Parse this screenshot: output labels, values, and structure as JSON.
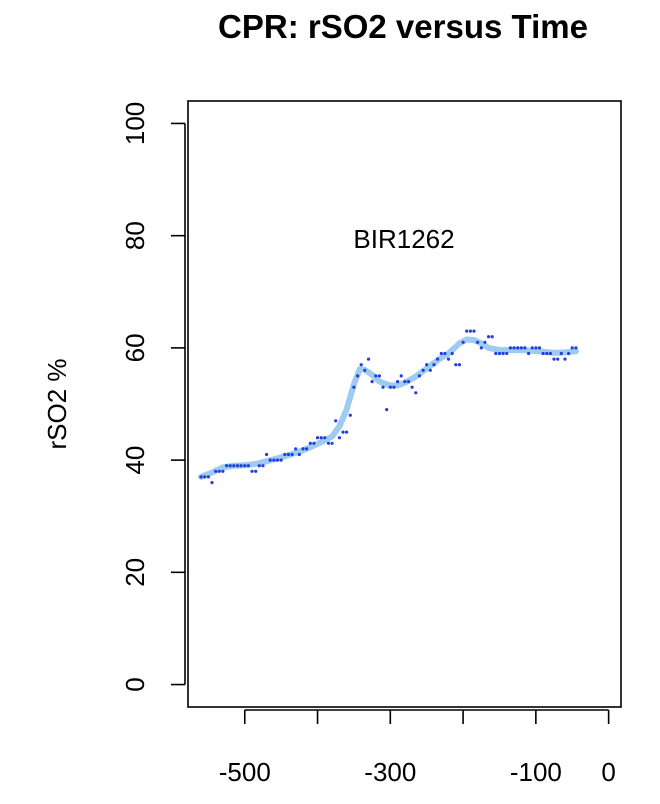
{
  "chart_data": {
    "type": "scatter",
    "title": "CPR: rSO2 versus Time",
    "xlabel": "",
    "ylabel": "rSO2 %",
    "annotation": "BIR1262",
    "xlim": [
      -578,
      17
    ],
    "ylim": [
      -4,
      104
    ],
    "x_ticks": [
      -500,
      -400,
      -300,
      -200,
      -100,
      0
    ],
    "x_tick_labels": [
      "-500",
      "-300",
      "-100",
      "0"
    ],
    "y_ticks": [
      0,
      20,
      40,
      60,
      80,
      100
    ],
    "y_tick_labels": [
      "0",
      "20",
      "40",
      "60",
      "80",
      "100"
    ],
    "grid": false,
    "colors": {
      "points": "#1f3fe0",
      "smooth": "#9ecbef",
      "axis": "#000000"
    },
    "series": [
      {
        "type": "points",
        "x": [
          -560,
          -555,
          -550,
          -545,
          -540,
          -535,
          -530,
          -525,
          -520,
          -515,
          -510,
          -505,
          -500,
          -495,
          -490,
          -485,
          -480,
          -475,
          -470,
          -465,
          -460,
          -455,
          -450,
          -445,
          -440,
          -435,
          -430,
          -425,
          -420,
          -415,
          -410,
          -405,
          -400,
          -395,
          -390,
          -385,
          -380,
          -375,
          -370,
          -365,
          -360,
          -355,
          -350,
          -345,
          -340,
          -335,
          -330,
          -325,
          -320,
          -315,
          -310,
          -305,
          -300,
          -295,
          -290,
          -285,
          -280,
          -275,
          -270,
          -265,
          -260,
          -255,
          -250,
          -245,
          -240,
          -235,
          -230,
          -225,
          -220,
          -215,
          -210,
          -205,
          -200,
          -195,
          -190,
          -185,
          -180,
          -175,
          -170,
          -165,
          -160,
          -155,
          -150,
          -145,
          -140,
          -135,
          -130,
          -125,
          -120,
          -115,
          -110,
          -105,
          -100,
          -95,
          -90,
          -85,
          -80,
          -75,
          -70,
          -65,
          -60,
          -55,
          -50,
          -45
        ],
        "y": [
          37,
          37,
          37,
          36,
          38,
          38,
          38,
          39,
          39,
          39,
          39,
          39,
          39,
          39,
          38,
          38,
          39,
          39,
          41,
          40,
          40,
          40,
          40,
          41,
          41,
          41,
          42,
          41,
          42,
          42,
          43,
          43,
          44,
          44,
          44,
          43,
          43,
          47,
          44,
          45,
          45,
          48,
          53,
          55,
          57,
          56,
          58,
          54,
          55,
          55,
          53,
          49,
          53,
          53,
          54,
          55,
          54,
          54,
          53,
          52,
          55,
          56,
          57,
          56,
          57,
          58,
          59,
          59,
          58,
          59,
          57,
          57,
          61,
          63,
          63,
          63,
          61,
          60,
          61,
          62,
          62,
          59,
          59,
          59,
          59,
          60,
          60,
          60,
          60,
          60,
          59,
          60,
          60,
          60,
          59,
          59,
          59,
          58,
          58,
          59,
          58,
          59,
          60,
          60
        ]
      },
      {
        "type": "smooth",
        "x": [
          -560,
          -545,
          -530,
          -515,
          -500,
          -485,
          -470,
          -455,
          -440,
          -425,
          -410,
          -395,
          -380,
          -370,
          -360,
          -350,
          -342,
          -335,
          -325,
          -315,
          -300,
          -290,
          -280,
          -265,
          -250,
          -235,
          -220,
          -205,
          -195,
          -185,
          -175,
          -165,
          -150,
          -135,
          -120,
          -105,
          -90,
          -75,
          -60,
          -45
        ],
        "y": [
          37,
          37.8,
          38.7,
          39,
          39.1,
          39.3,
          39.8,
          40.3,
          40.9,
          41.5,
          42.3,
          43.2,
          44.2,
          46,
          49,
          53.5,
          56.2,
          56.1,
          55.2,
          54,
          53.3,
          53.3,
          53.8,
          54.9,
          56.3,
          57.8,
          59,
          60.8,
          61.5,
          61.4,
          60.8,
          60,
          59.6,
          59.6,
          59.6,
          59.5,
          59.3,
          59.1,
          59.2,
          59.4
        ]
      }
    ]
  }
}
